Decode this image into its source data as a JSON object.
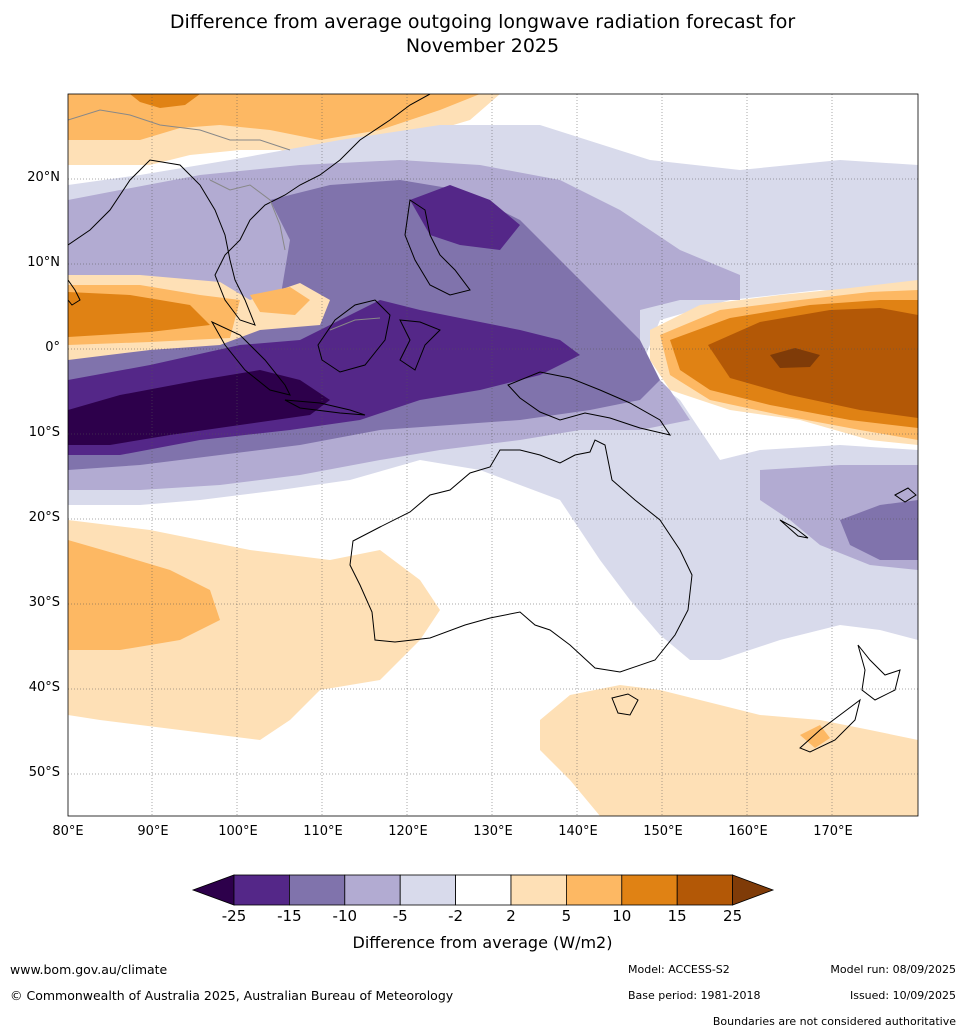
{
  "title_line1": "Difference from average outgoing longwave radiation forecast for",
  "title_line2": "November 2025",
  "lat_labels": [
    "20°N",
    "10°N",
    "0°",
    "10°S",
    "20°S",
    "30°S",
    "40°S",
    "50°S"
  ],
  "lat_values": [
    20,
    10,
    0,
    -10,
    -20,
    -30,
    -40,
    -50
  ],
  "lon_labels": [
    "80°E",
    "90°E",
    "100°E",
    "110°E",
    "120°E",
    "130°E",
    "140°E",
    "150°E",
    "160°E",
    "170°E"
  ],
  "lon_values": [
    80,
    90,
    100,
    110,
    120,
    130,
    140,
    150,
    160,
    170
  ],
  "map_extent": {
    "lon_min": 80,
    "lon_max": 180,
    "lat_min": -55,
    "lat_max": 30
  },
  "colorbar": {
    "ticks": [
      "-25",
      "-15",
      "-10",
      "-5",
      "-2",
      "2",
      "5",
      "10",
      "15",
      "25"
    ],
    "colors": [
      "#2d004b",
      "#542788",
      "#8073ac",
      "#b2abd2",
      "#d8daeb",
      "#ffffff",
      "#fee0b6",
      "#fdb863",
      "#e08214",
      "#b35806",
      "#7f3b08"
    ],
    "title": "Difference from average (W/m2)"
  },
  "footer": {
    "website": "www.bom.gov.au/climate",
    "copyright": "© Commonwealth of Australia 2025, Australian Bureau of Meteorology",
    "model": "Model: ACCESS-S2",
    "base_period": "Base period: 1981-2018",
    "model_run": "Model run: 08/09/2025",
    "issued": "Issued: 10/09/2025",
    "boundaries": "Boundaries are not considered authoritative"
  }
}
